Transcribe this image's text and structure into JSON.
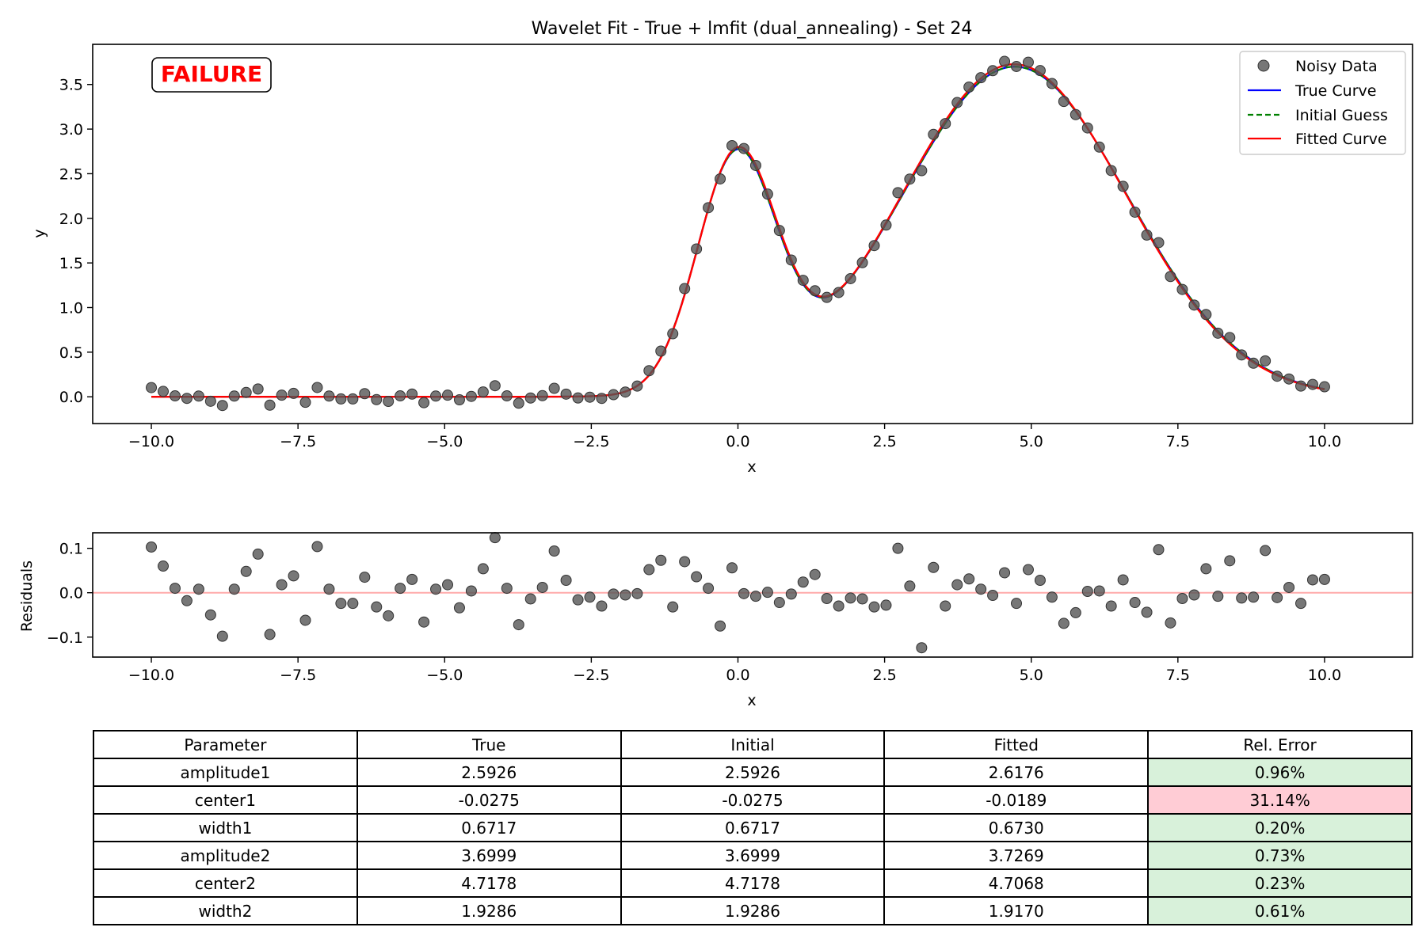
{
  "chart_data": [
    {
      "type": "scatter",
      "title": "Wavelet Fit - True + lmfit (dual_annealing) - Set 24",
      "xlabel": "x",
      "ylabel": "y",
      "xlim": [
        -11,
        11.5
      ],
      "ylim": [
        -0.3,
        3.95
      ],
      "xticks": [
        -10,
        -7.5,
        -5,
        -2.5,
        0,
        2.5,
        5,
        7.5,
        10
      ],
      "xtick_labels": [
        "−10.0",
        "−7.5",
        "−5.0",
        "−2.5",
        "0.0",
        "2.5",
        "5.0",
        "7.5",
        "10.0"
      ],
      "yticks": [
        0,
        0.5,
        1,
        1.5,
        2,
        2.5,
        3,
        3.5
      ],
      "ytick_labels": [
        "0.0",
        "0.5",
        "1.0",
        "1.5",
        "2.0",
        "2.5",
        "3.0",
        "3.5"
      ],
      "annotation": "FAILURE",
      "legend_position": "top-right",
      "legend": [
        "Noisy Data",
        "True Curve",
        "Initial Guess",
        "Fitted Curve"
      ],
      "series_colors": {
        "noisy": "#555555",
        "true": "#0000ff",
        "initial": "#008000",
        "fitted": "#ff0000",
        "badge": "#ff0000"
      },
      "model": "gaussian_sum",
      "true_params": {
        "amplitude1": 2.5926,
        "center1": -0.0275,
        "width1": 0.6717,
        "amplitude2": 3.6999,
        "center2": 4.7178,
        "width2": 1.9286
      },
      "initial_params": {
        "amplitude1": 2.5926,
        "center1": -0.0275,
        "width1": 0.6717,
        "amplitude2": 3.6999,
        "center2": 4.7178,
        "width2": 1.9286
      },
      "fitted_params": {
        "amplitude1": 2.6176,
        "center1": -0.0189,
        "width1": 0.673,
        "amplitude2": 3.7269,
        "center2": 4.7068,
        "width2": 1.917
      },
      "x_range": [
        -10,
        10
      ],
      "n_points": 100,
      "residuals": [
        0.103,
        0.06,
        0.01,
        -0.018,
        0.008,
        -0.05,
        -0.098,
        0.008,
        0.048,
        0.087,
        -0.094,
        0.018,
        0.038,
        -0.062,
        0.104,
        0.008,
        -0.024,
        -0.024,
        0.035,
        -0.032,
        -0.052,
        0.01,
        0.03,
        -0.066,
        0.008,
        0.018,
        -0.034,
        0.004,
        0.054,
        0.124,
        0.01,
        -0.072,
        -0.014,
        0.012,
        0.094,
        0.028,
        -0.016,
        -0.01,
        -0.03,
        -0.003,
        -0.005,
        -0.002,
        0.052,
        0.073,
        -0.032,
        0.07,
        0.036,
        0.01,
        -0.075,
        0.056,
        -0.002,
        -0.008,
        0.001,
        -0.022,
        -0.003,
        0.024,
        0.041,
        -0.013,
        -0.03,
        -0.012,
        -0.014,
        -0.032,
        -0.028,
        0.1,
        0.015,
        -0.124,
        0.057,
        -0.03,
        0.018,
        0.031,
        0.008,
        -0.006,
        0.045,
        -0.024,
        0.052,
        0.028,
        -0.01,
        -0.069,
        -0.045,
        0.003,
        0.004,
        -0.03,
        0.029,
        -0.022,
        -0.044,
        0.097,
        -0.068,
        -0.013,
        -0.005,
        0.054,
        -0.008,
        0.072,
        -0.012,
        -0.01,
        0.095,
        -0.011,
        0.012,
        -0.024,
        0.029,
        0.03
      ]
    },
    {
      "type": "scatter",
      "xlabel": "x",
      "ylabel": "Residuals",
      "xlim": [
        -11,
        11.5
      ],
      "ylim": [
        -0.145,
        0.135
      ],
      "yticks": [
        -0.1,
        0,
        0.1
      ],
      "ytick_labels": [
        "−0.1",
        "0.0",
        "0.1"
      ],
      "zero_line_color": "#ffaaaa"
    }
  ],
  "table": {
    "headers": [
      "Parameter",
      "True",
      "Initial",
      "Fitted",
      "Rel. Error"
    ],
    "rows": [
      {
        "param": "amplitude1",
        "true": "2.5926",
        "initial": "2.5926",
        "fitted": "2.6176",
        "error": "0.96%",
        "status": "ok"
      },
      {
        "param": "center1",
        "true": "-0.0275",
        "initial": "-0.0275",
        "fitted": "-0.0189",
        "error": "31.14%",
        "status": "bad"
      },
      {
        "param": "width1",
        "true": "0.6717",
        "initial": "0.6717",
        "fitted": "0.6730",
        "error": "0.20%",
        "status": "ok"
      },
      {
        "param": "amplitude2",
        "true": "3.6999",
        "initial": "3.6999",
        "fitted": "3.7269",
        "error": "0.73%",
        "status": "ok"
      },
      {
        "param": "center2",
        "true": "4.7178",
        "initial": "4.7178",
        "fitted": "4.7068",
        "error": "0.23%",
        "status": "ok"
      },
      {
        "param": "width2",
        "true": "1.9286",
        "initial": "1.9286",
        "fitted": "1.9170",
        "error": "0.61%",
        "status": "ok"
      }
    ],
    "colors": {
      "ok": "#d8f1da",
      "bad": "#ffccd5"
    }
  }
}
